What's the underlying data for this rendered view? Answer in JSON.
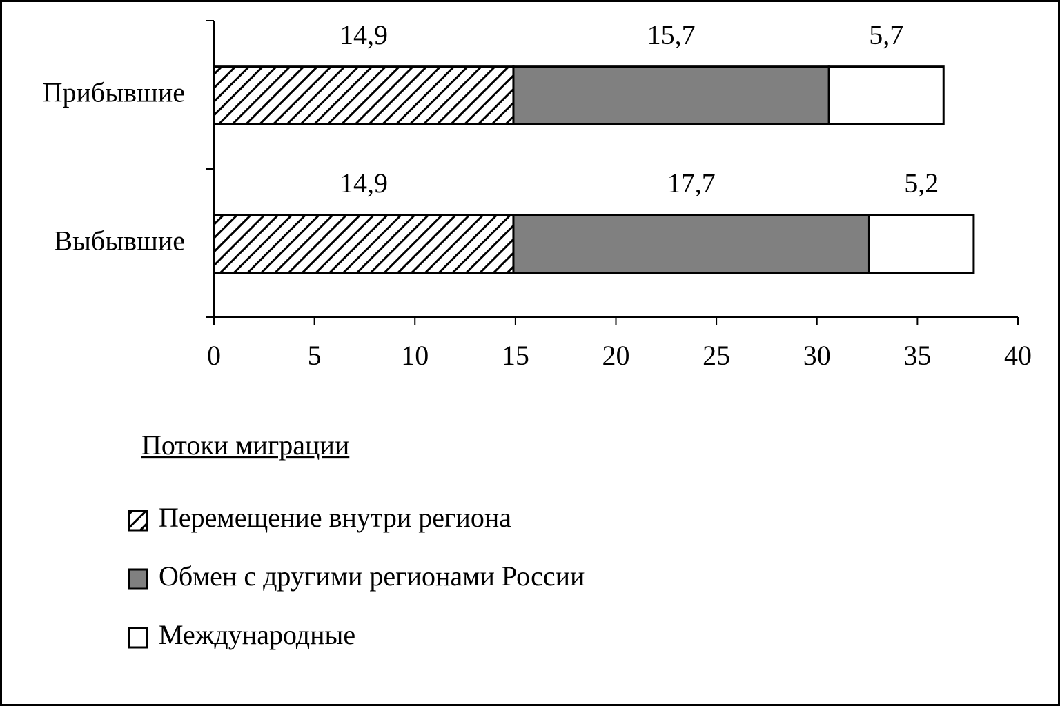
{
  "chart_data": {
    "type": "stacked-bar-horizontal",
    "categories": [
      "Прибывшие",
      "Выбывшие"
    ],
    "series": [
      {
        "name": "Перемещение внутри региона",
        "color": "#000000",
        "hatch": true,
        "values": [
          14.9,
          14.9
        ],
        "value_labels": [
          "14,9",
          "14,9"
        ]
      },
      {
        "name": "Обмен с другими регионами России",
        "color": "#808080",
        "values": [
          15.7,
          17.7
        ],
        "value_labels": [
          "15,7",
          "17,7"
        ]
      },
      {
        "name": "Международные",
        "color": "#ffffff",
        "values": [
          5.7,
          5.2
        ],
        "value_labels": [
          "5,7",
          "5,2"
        ]
      }
    ],
    "legend_title": "Потоки миграции",
    "xlim": [
      0,
      40
    ],
    "xticks": [
      0,
      5,
      10,
      15,
      20,
      25,
      30,
      35,
      40
    ]
  }
}
